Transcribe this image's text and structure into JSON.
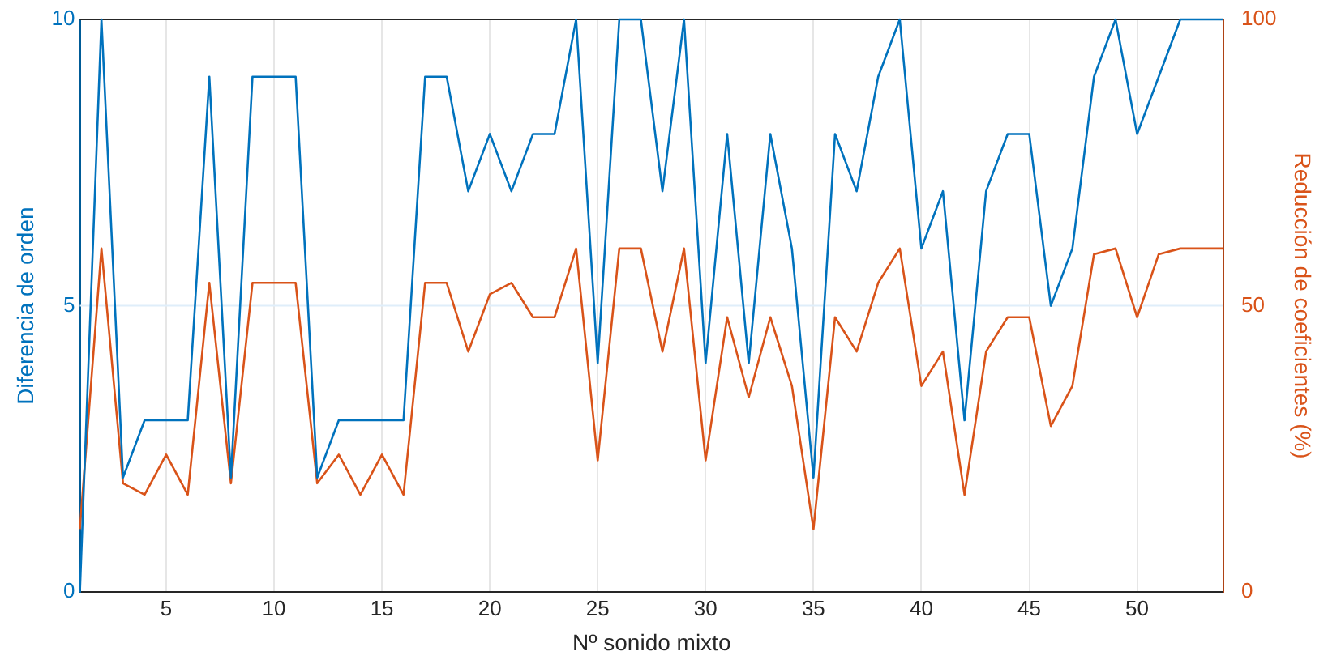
{
  "chart_data": {
    "type": "line",
    "xlabel": "Nº sonido mixto",
    "ylabel": "Diferencia de orden",
    "y2label": "Reducción de coeficientes (%)",
    "x": [
      1,
      2,
      3,
      4,
      5,
      6,
      7,
      8,
      9,
      10,
      11,
      12,
      13,
      14,
      15,
      16,
      17,
      18,
      19,
      20,
      21,
      22,
      23,
      24,
      25,
      26,
      27,
      28,
      29,
      30,
      31,
      32,
      33,
      34,
      35,
      36,
      37,
      38,
      39,
      40,
      41,
      42,
      43,
      44,
      45,
      46,
      47,
      48,
      49,
      50,
      51,
      52,
      53,
      54
    ],
    "xlim": [
      1,
      54
    ],
    "xticks": [
      5,
      10,
      15,
      20,
      25,
      30,
      35,
      40,
      45,
      50
    ],
    "ylim": [
      0,
      10
    ],
    "yticks": [
      0,
      5,
      10
    ],
    "y2lim": [
      0,
      100
    ],
    "y2ticks": [
      0,
      50,
      100
    ],
    "grid": "x",
    "ref_lines": [
      {
        "axis": "y",
        "value": 5,
        "color": "#dfeefa"
      }
    ],
    "marker": "none",
    "line_style": "solid",
    "series": [
      {
        "color": "#0072bd",
        "values": [
          0,
          10,
          2,
          3,
          3,
          3,
          9,
          2,
          9,
          9,
          9,
          2,
          3,
          3,
          3,
          3,
          9,
          9,
          7,
          8,
          7,
          8,
          8,
          10,
          4,
          10,
          10,
          7,
          10,
          4,
          8,
          4,
          8,
          6,
          2,
          8,
          7,
          9,
          10,
          6,
          7,
          3,
          7,
          8,
          8,
          5,
          6,
          9,
          10,
          8,
          9,
          10,
          10,
          10
        ]
      },
      {
        "color": "#d95319",
        "axis": "y2",
        "values": [
          11,
          60,
          19,
          17,
          24,
          17,
          54,
          19,
          54,
          54,
          54,
          19,
          24,
          17,
          24,
          17,
          54,
          54,
          42,
          52,
          54,
          48,
          48,
          60,
          23,
          60,
          60,
          42,
          60,
          23,
          48,
          34,
          48,
          36,
          11,
          48,
          42,
          54,
          60,
          36,
          42,
          17,
          42,
          48,
          48,
          29,
          36,
          59,
          60,
          48,
          59,
          60,
          60,
          60
        ]
      }
    ]
  }
}
